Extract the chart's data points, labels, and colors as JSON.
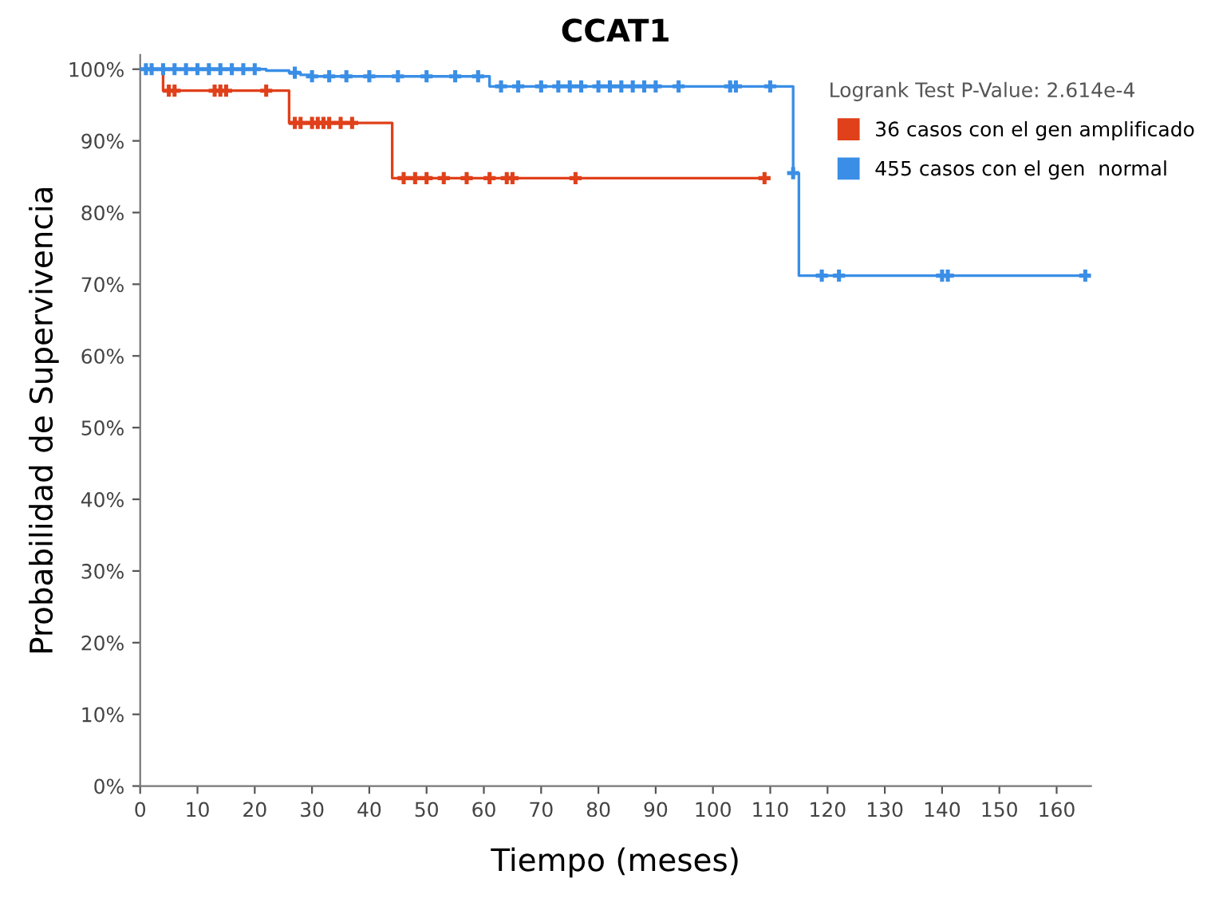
{
  "chart_data": {
    "type": "step",
    "title": "CCAT1",
    "xlabel": "Tiempo (meses)",
    "ylabel": "Probabilidad de Supervivencia",
    "legend_title": "Logrank Test P-Value: 2.614e-4",
    "legend": "top right",
    "grid": false,
    "xlim": [
      0,
      166
    ],
    "xticks": [
      0,
      10,
      20,
      30,
      40,
      50,
      60,
      70,
      80,
      90,
      100,
      110,
      120,
      130,
      140,
      150,
      160
    ],
    "ylim": [
      0,
      102
    ],
    "yticks": [
      {
        "value": 0,
        "label": "0%"
      },
      {
        "value": 10,
        "label": "10%"
      },
      {
        "value": 20,
        "label": "20%"
      },
      {
        "value": 30,
        "label": "30%"
      },
      {
        "value": 40,
        "label": "40%"
      },
      {
        "value": 50,
        "label": "50%"
      },
      {
        "value": 60,
        "label": "60%"
      },
      {
        "value": 70,
        "label": "70%"
      },
      {
        "value": 80,
        "label": "80%"
      },
      {
        "value": 90,
        "label": "90%"
      },
      {
        "value": 100,
        "label": "100%"
      }
    ],
    "series": [
      {
        "name": "36 casos con el gen amplificado",
        "color": "#e0401a",
        "marker": "none",
        "x": [
          0,
          4,
          26,
          44,
          109
        ],
        "values": [
          100,
          97,
          92.5,
          84.8,
          84.8
        ]
      },
      {
        "name": "455 casos con el gen  normal",
        "color": "#3a8ee6",
        "marker": "none",
        "x": [
          0,
          22,
          26,
          28,
          30,
          61,
          114,
          115,
          165
        ],
        "values": [
          100,
          99.8,
          99.5,
          99.2,
          99,
          97.6,
          85.5,
          71.2,
          71.2
        ]
      },
      {
        "color": "#e0401a",
        "type": "scatter",
        "marker": "cross",
        "x": [
          5,
          6,
          13,
          14,
          15,
          22,
          27,
          28,
          30,
          31,
          32,
          33,
          35,
          37,
          46,
          48,
          50,
          53,
          57,
          61,
          64,
          65,
          76,
          109
        ],
        "values": [
          97,
          97,
          97,
          97,
          97,
          97,
          92.5,
          92.5,
          92.5,
          92.5,
          92.5,
          92.5,
          92.5,
          92.5,
          84.8,
          84.8,
          84.8,
          84.8,
          84.8,
          84.8,
          84.8,
          84.8,
          84.8,
          84.8
        ]
      },
      {
        "color": "#3a8ee6",
        "type": "scatter",
        "marker": "cross",
        "x": [
          1,
          2,
          4,
          6,
          8,
          10,
          12,
          14,
          16,
          18,
          20,
          27,
          30,
          33,
          36,
          40,
          45,
          50,
          55,
          59,
          63,
          66,
          70,
          73,
          75,
          77,
          80,
          82,
          84,
          86,
          88,
          90,
          94,
          103,
          104,
          110,
          114,
          119,
          122,
          140,
          141,
          165
        ],
        "values": [
          100,
          100,
          100,
          100,
          100,
          100,
          100,
          100,
          100,
          100,
          100,
          99.5,
          99,
          99,
          99,
          99,
          99,
          99,
          99,
          99,
          97.6,
          97.6,
          97.6,
          97.6,
          97.6,
          97.6,
          97.6,
          97.6,
          97.6,
          97.6,
          97.6,
          97.6,
          97.6,
          97.6,
          97.6,
          97.6,
          85.5,
          71.2,
          71.2,
          71.2,
          71.2,
          71.2
        ]
      }
    ]
  }
}
